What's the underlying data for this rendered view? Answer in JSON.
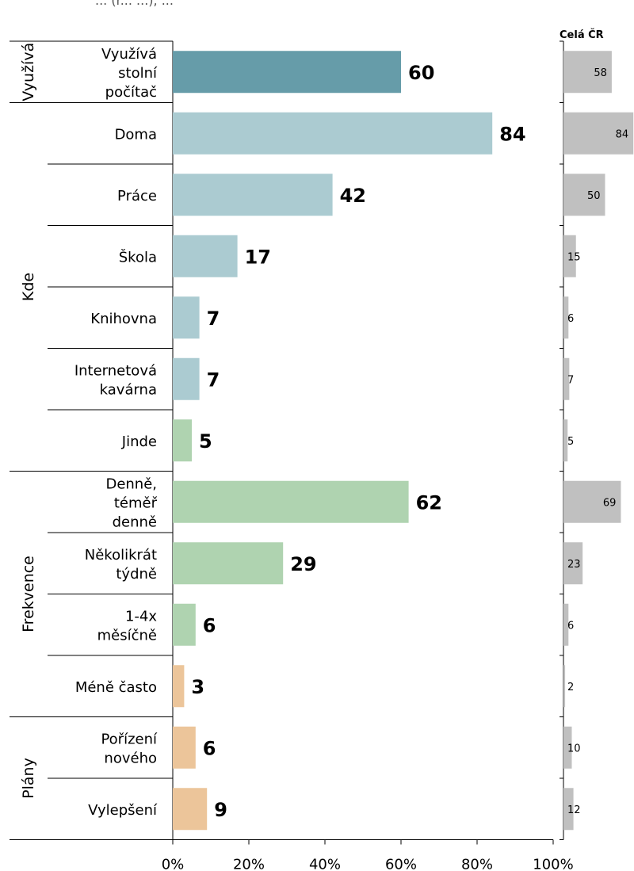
{
  "subtitle_partial": "... (r... ...), ...",
  "national_header": "Celá ČR",
  "chart_data": {
    "type": "bar",
    "orientation": "horizontal",
    "xlim": [
      0,
      100
    ],
    "x_ticks": [
      "0%",
      "20%",
      "40%",
      "60%",
      "80%",
      "100%"
    ],
    "groups": [
      {
        "label": "Využívá",
        "rows": [
          0,
          0
        ]
      },
      {
        "label": "Kde",
        "rows": [
          1,
          6
        ]
      },
      {
        "label": "Frekvence",
        "rows": [
          7,
          10
        ]
      },
      {
        "label": "Plány",
        "rows": [
          11,
          12
        ]
      }
    ],
    "categories": [
      [
        "Využívá",
        "stolní",
        "počítač"
      ],
      [
        "Doma"
      ],
      [
        "Práce"
      ],
      [
        "Škola"
      ],
      [
        "Knihovna"
      ],
      [
        "Internetová",
        "kavárna"
      ],
      [
        "Jinde"
      ],
      [
        "Denně,",
        "téměř",
        "denně"
      ],
      [
        "Několikrát",
        "týdně"
      ],
      [
        "1-4x",
        "měsíčně"
      ],
      [
        "Méně často"
      ],
      [
        "Pořízení",
        "nového"
      ],
      [
        "Vylepšení"
      ]
    ],
    "values": [
      60,
      84,
      42,
      17,
      7,
      7,
      5,
      62,
      29,
      6,
      3,
      6,
      9
    ],
    "national_values": [
      58,
      84,
      50,
      15,
      6,
      7,
      5,
      69,
      23,
      6,
      2,
      10,
      12
    ],
    "colors": [
      "#669ca9",
      "#abcbd1",
      "#abcbd1",
      "#abcbd1",
      "#abcbd1",
      "#abcbd1",
      "#afd3b0",
      "#afd3b0",
      "#afd3b0",
      "#afd3b0",
      "#ecc59a",
      "#ecc59a",
      "#ecc59a"
    ],
    "national_color": "#c0c0c0"
  }
}
